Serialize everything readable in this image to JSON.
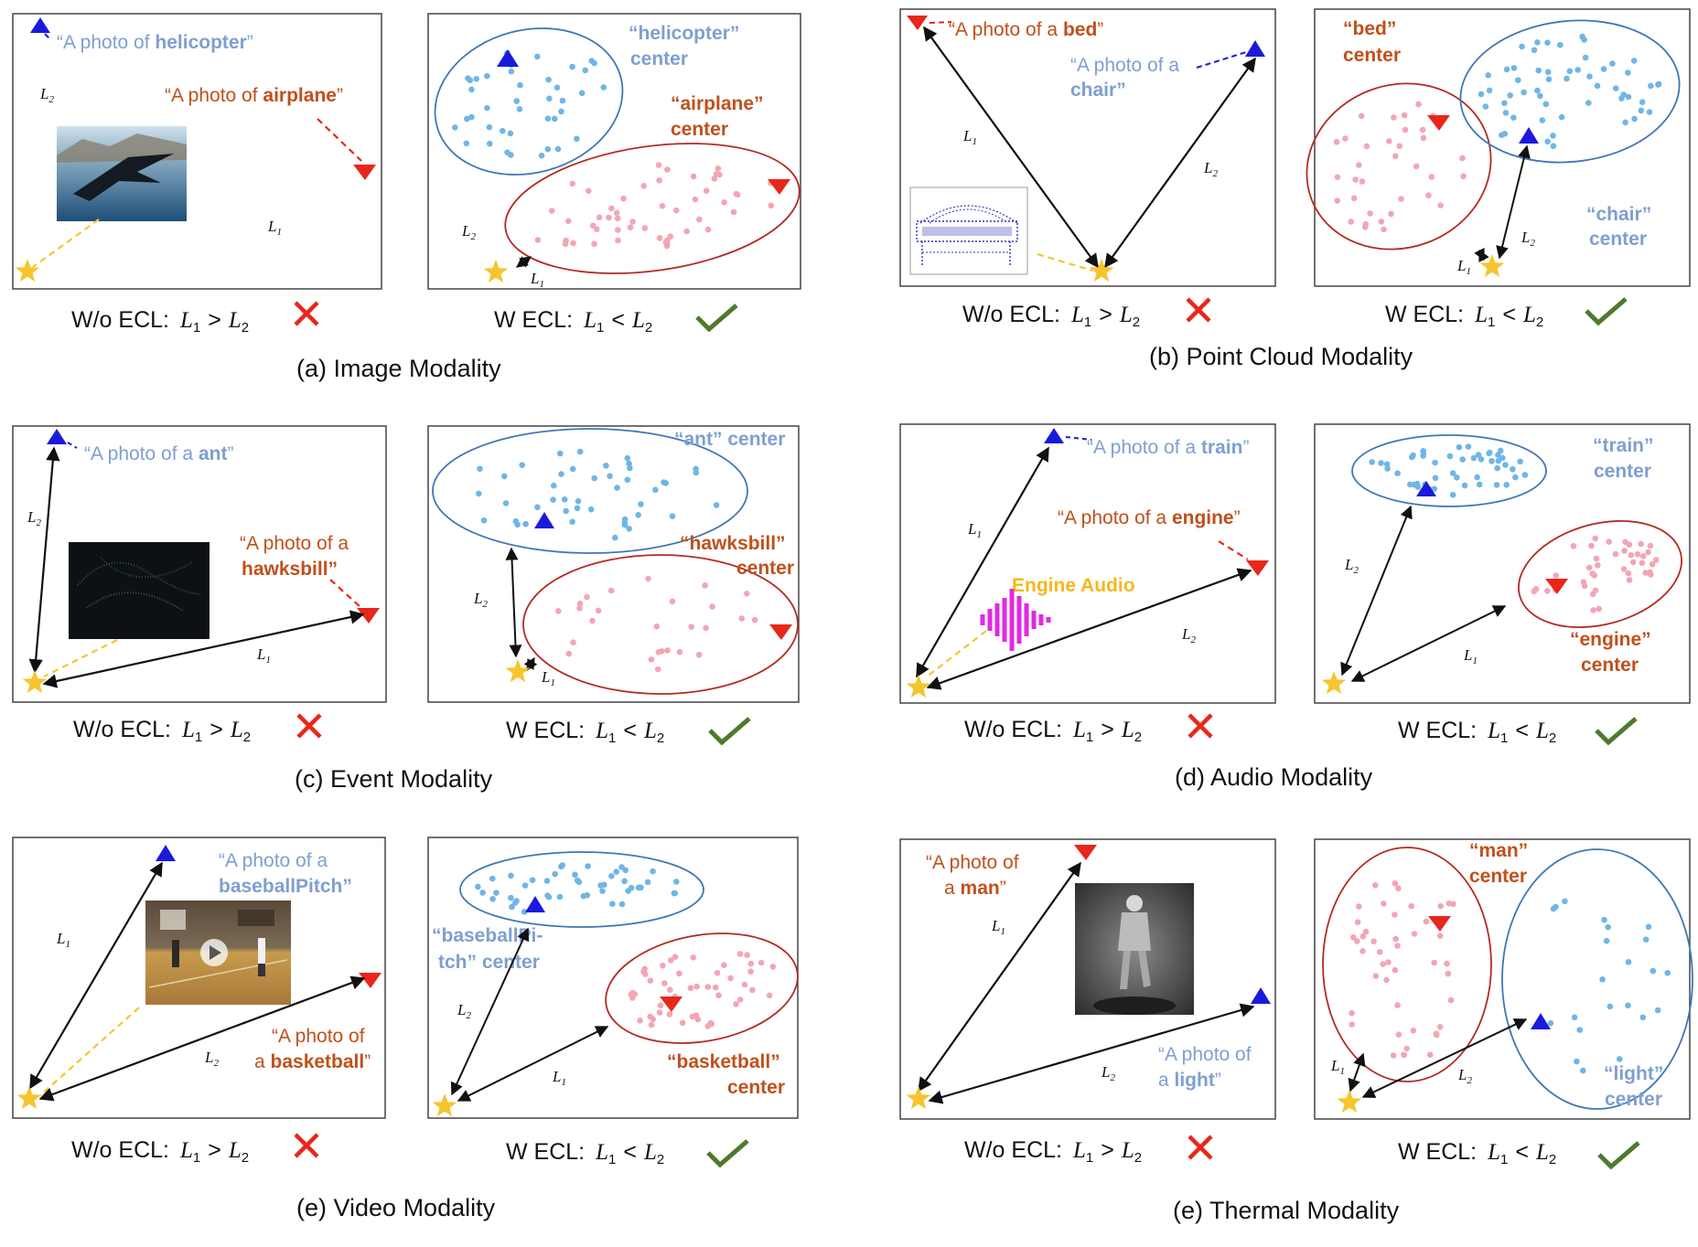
{
  "colors": {
    "blue_text": "#7e9fd0",
    "red_text": "#c0501b",
    "blue_marker": "#1a1adb",
    "red_marker": "#e8271b",
    "star": "#f6c52e",
    "blue_dots": "#6fb6e6",
    "red_dots": "#f2a6b4",
    "blue_ellipse": "#3f77b5",
    "red_ellipse": "#b42a22",
    "cross": "#e8271b",
    "check": "#4e7a2d",
    "engine_audio_text": "#f3b81b",
    "waveform": "#e02ae0"
  },
  "icons": {
    "cross": "cross-icon",
    "check": "check-icon",
    "star": "star-icon",
    "triangle_up": "triangle-up-icon",
    "triangle_down": "triangle-down-icon"
  },
  "formula": {
    "without_prefix": "W/o ECL:",
    "with_prefix": "W ECL:",
    "L1": "L",
    "L2": "L",
    "sub1": "1",
    "sub2": "2",
    "gt": ">",
    "lt": "<"
  },
  "panels": [
    {
      "caption": "(a)  Image Modality",
      "wo": {
        "blue_label": [
          "“A photo of ",
          "helicopter",
          "”"
        ],
        "red_label": [
          "“A photo of ",
          "airplane",
          "”"
        ]
      },
      "w": {
        "blue_center": [
          "“helicopter”",
          "center"
        ],
        "red_center": [
          "“airplane”",
          "center"
        ]
      }
    },
    {
      "caption": "(b)  Point Cloud Modality",
      "wo": {
        "red_label": [
          "“A photo of a ",
          "bed",
          "”"
        ],
        "blue_label_1": "“A photo of a",
        "blue_label_2": "chair”"
      },
      "w": {
        "red_center": [
          "“bed”",
          "center"
        ],
        "blue_center": [
          "“chair”",
          "center"
        ]
      }
    },
    {
      "caption": "(c)  Event Modality",
      "wo": {
        "blue_label": [
          "“A photo of a ",
          "ant",
          "”"
        ],
        "red_label_1": "“A photo of a",
        "red_label_2": "hawksbill”"
      },
      "w": {
        "blue_center": "“ant” center",
        "red_center": [
          "“hawksbill”",
          "center"
        ]
      }
    },
    {
      "caption": "(d)  Audio Modality",
      "wo": {
        "blue_label": [
          "“A photo of a ",
          "train",
          "”"
        ],
        "red_label": [
          "“A photo of a ",
          "engine",
          "”"
        ],
        "audio_label": "Engine Audio"
      },
      "w": {
        "blue_center": [
          "“train”",
          "center"
        ],
        "red_center": [
          "“engine”",
          "center"
        ]
      }
    },
    {
      "caption": "(e)  Video Modality",
      "wo": {
        "blue_label_1": "“A photo of a",
        "blue_label_2": "baseballPitch”",
        "red_label_1": "“A photo of",
        "red_label_2": [
          "a ",
          "basketball",
          "”"
        ]
      },
      "w": {
        "blue_center": [
          "“baseballPi-",
          "tch” center"
        ],
        "red_center": [
          "“basketball”",
          "center"
        ]
      }
    },
    {
      "caption": "(e)  Thermal Modality",
      "wo": {
        "red_label_1": "“A photo of",
        "red_label_2": [
          "a ",
          "man",
          "”"
        ],
        "blue_label_1": "“A photo of",
        "blue_label_2": [
          "a ",
          "light",
          "”"
        ]
      },
      "w": {
        "red_center": [
          "“man”",
          "center"
        ],
        "blue_center": [
          "“light”",
          "center"
        ]
      }
    }
  ]
}
